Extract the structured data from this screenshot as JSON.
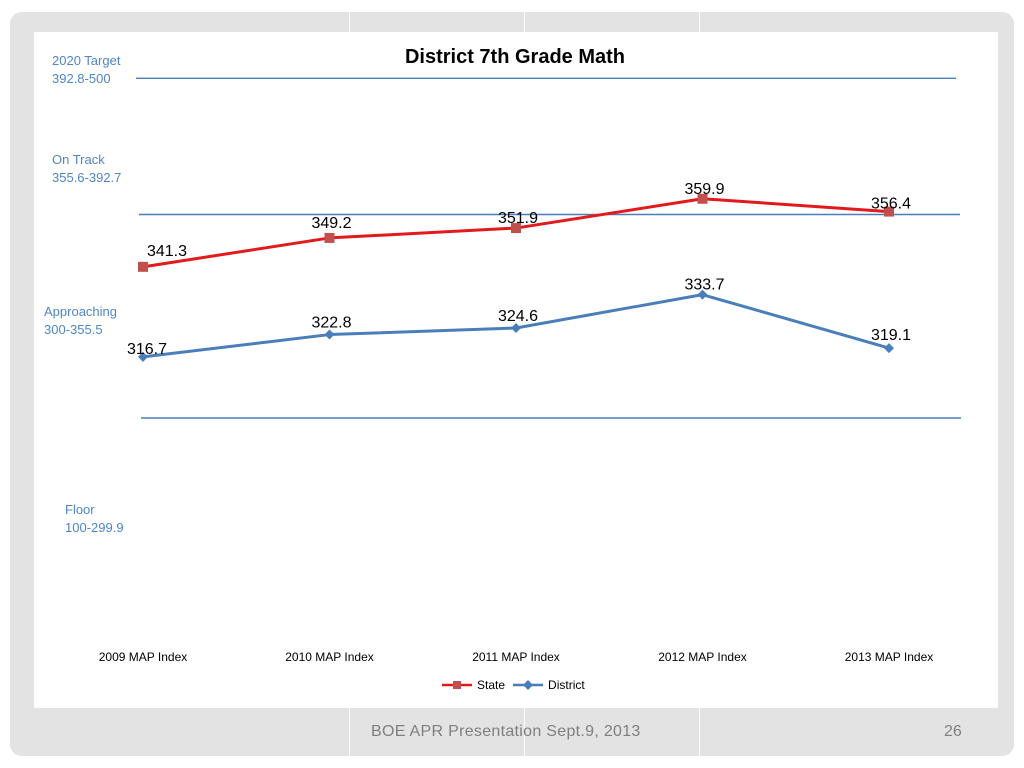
{
  "slide": {
    "footer_text": "BOE APR Presentation Sept.9, 2013",
    "page_number": "26"
  },
  "bands": [
    {
      "name": "2020 Target",
      "range": "392.8-500"
    },
    {
      "name": "On Track",
      "range": "355.6-392.7"
    },
    {
      "name": "Approaching",
      "range": "300-355.5"
    },
    {
      "name": "Floor",
      "range": "100-299.9"
    }
  ],
  "chart_data": {
    "type": "line",
    "title": "District 7th Grade Math",
    "categories": [
      "2009 MAP Index",
      "2010 MAP Index",
      "2011 MAP Index",
      "2012 MAP Index",
      "2013 MAP Index"
    ],
    "series": [
      {
        "name": "State",
        "values": [
          341.3,
          349.2,
          351.9,
          359.9,
          356.4
        ],
        "color": "#e31a1c",
        "marker": "square"
      },
      {
        "name": "District",
        "values": [
          316.7,
          322.8,
          324.6,
          333.7,
          319.1
        ],
        "color": "#4a7ebb",
        "marker": "diamond"
      }
    ],
    "band_lines": [
      392.8,
      355.6,
      300
    ],
    "band_line_color": "#4a7ebb",
    "ylim": [
      250,
      400
    ],
    "grid": false,
    "legend": "bottom-center"
  }
}
